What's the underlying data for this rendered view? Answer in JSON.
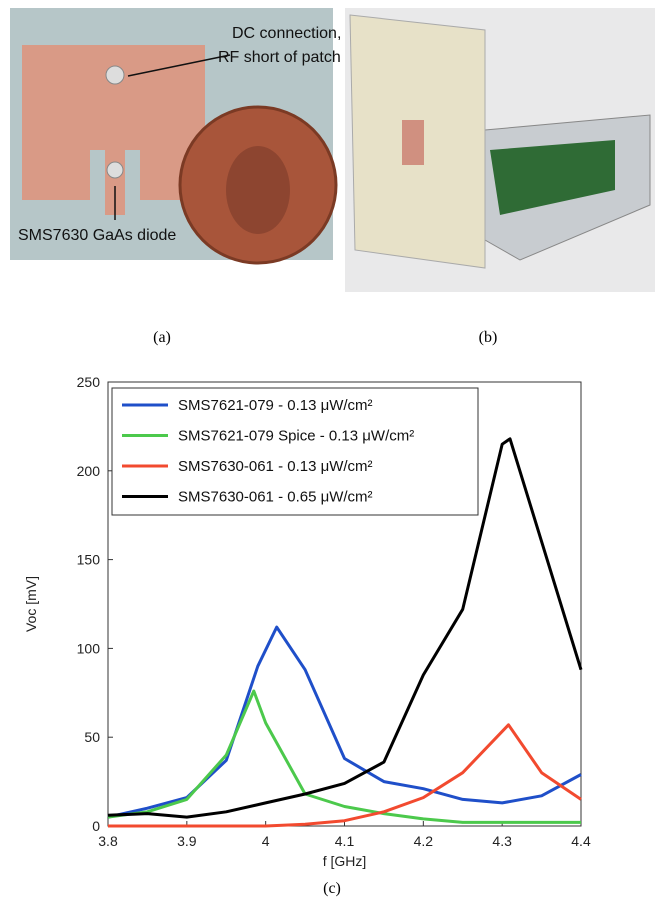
{
  "photo_a": {
    "annotations": [
      "DC connection,",
      "RF short of patch",
      "SMS7630 GaAs diode"
    ],
    "caption": "(a)"
  },
  "photo_b": {
    "caption": "(b)"
  },
  "chart_data": {
    "type": "line",
    "caption": "(c)",
    "xlabel": "f [GHz]",
    "ylabel": "Voc [mV]",
    "xlim": [
      3.8,
      4.4
    ],
    "xticks": [
      3.8,
      3.9,
      4,
      4.1,
      4.2,
      4.3,
      4.4
    ],
    "ylim": [
      0,
      250
    ],
    "yticks": [
      0,
      50,
      100,
      150,
      200,
      250
    ],
    "series": [
      {
        "name": "SMS7621-079 - 0.13 μW/cm²",
        "color": "#1f4fc9",
        "x": [
          3.8,
          3.85,
          3.9,
          3.95,
          3.99,
          4.014,
          4.05,
          4.1,
          4.15,
          4.2,
          4.25,
          4.3,
          4.35,
          4.4
        ],
        "values": [
          5,
          10,
          16,
          37,
          90,
          112,
          88,
          38,
          25,
          21,
          15,
          13,
          17,
          29
        ]
      },
      {
        "name": "SMS7621-079 Spice - 0.13 μW/cm²",
        "color": "#4cc94c",
        "x": [
          3.8,
          3.85,
          3.9,
          3.95,
          3.985,
          4.0,
          4.05,
          4.1,
          4.15,
          4.2,
          4.25,
          4.3,
          4.35,
          4.4
        ],
        "values": [
          5,
          8,
          15,
          40,
          76,
          58,
          18,
          11,
          7,
          4,
          2,
          2,
          2,
          2
        ]
      },
      {
        "name": "SMS7630-061 - 0.13 μW/cm²",
        "color": "#f24a2f",
        "x": [
          3.8,
          3.9,
          4.0,
          4.05,
          4.1,
          4.15,
          4.2,
          4.25,
          4.308,
          4.35,
          4.4
        ],
        "values": [
          0,
          0,
          0,
          1,
          3,
          8,
          16,
          30,
          57,
          30,
          15
        ]
      },
      {
        "name": "SMS7630-061 - 0.65 μW/cm²",
        "color": "#000000",
        "x": [
          3.8,
          3.85,
          3.9,
          3.95,
          4.0,
          4.05,
          4.1,
          4.15,
          4.2,
          4.25,
          4.3,
          4.31,
          4.4
        ],
        "values": [
          6,
          7,
          5,
          8,
          13,
          18,
          24,
          36,
          85,
          122,
          215,
          218,
          88
        ]
      }
    ]
  }
}
